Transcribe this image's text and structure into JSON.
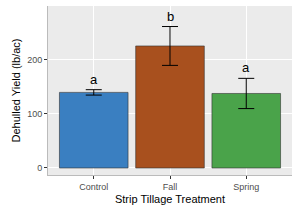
{
  "chart_data": {
    "type": "bar",
    "x_label": "Strip Tillage Treatment",
    "y_label": "Dehulled Yield (lb/ac)",
    "categories": [
      "Control",
      "Fall",
      "Spring"
    ],
    "values": [
      140,
      226,
      138
    ],
    "errors": [
      5,
      36,
      28
    ],
    "letters": [
      "a",
      "b",
      "a"
    ],
    "colors": [
      "#3a7fc1",
      "#a8501e",
      "#4aa34a"
    ],
    "ylim": [
      -13,
      300
    ],
    "yticks": [
      0,
      100,
      200
    ],
    "grid": true
  }
}
